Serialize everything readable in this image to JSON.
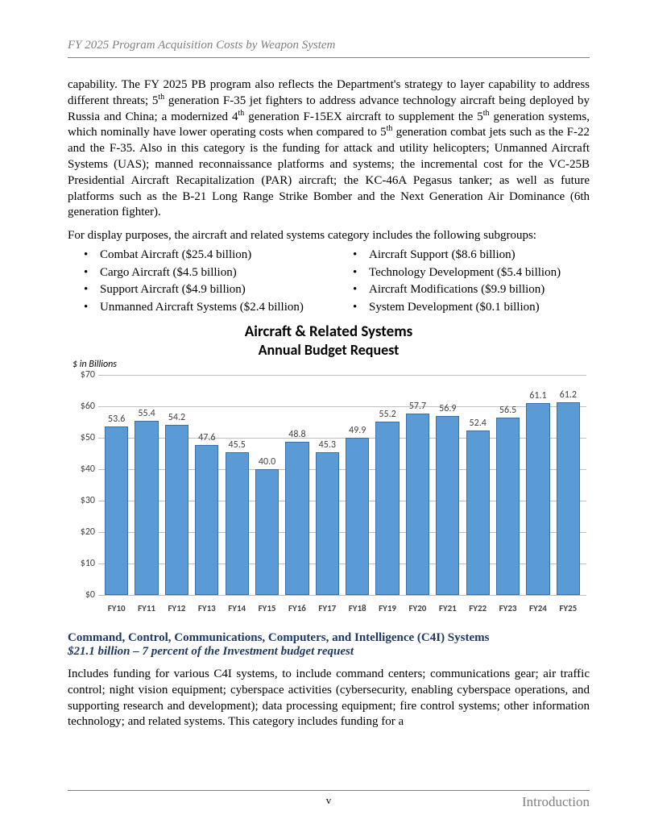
{
  "header": {
    "title": "FY 2025 Program Acquisition Costs by Weapon System"
  },
  "para1": "capability.  The FY 2025 PB program also reflects the Department's strategy to layer capability to address different threats; 5th generation F-35 jet fighters to address advance technology aircraft being deployed by Russia and China; a modernized 4th generation F-15EX aircraft to supplement the 5th generation systems, which nominally have lower operating costs when compared to 5th generation combat jets such as the F-22 and the F-35.  Also in this category is the funding for attack and utility helicopters; Unmanned Aircraft Systems (UAS); manned reconnaissance platforms and systems; the incremental cost for the VC-25B Presidential Aircraft Recapitalization (PAR) aircraft; the KC-46A Pegasus tanker; as well as future platforms such as the B-21 Long Range Strike Bomber and the Next Generation Air Dominance (6th generation fighter).",
  "para1_html": "capability.  The FY 2025 PB program also reflects the Department's strategy to layer capability to address different threats; 5<sup>th</sup> generation F-35 jet fighters to address advance technology aircraft being deployed by Russia and China; a modernized 4<sup>th</sup> generation F-15EX aircraft to supplement the 5<sup>th</sup> generation systems, which nominally have lower operating costs when compared to 5<sup>th</sup> generation combat jets such as the F-22 and the F-35.  Also in this category is the funding for attack and utility helicopters; Unmanned Aircraft Systems (UAS); manned reconnaissance platforms and systems; the incremental cost for the VC-25B Presidential Aircraft Recapitalization (PAR) aircraft; the KC-46A Pegasus tanker; as well as future platforms such as the B-21 Long Range Strike Bomber and the Next Generation Air Dominance (6th generation fighter).",
  "intro2": "For display purposes, the aircraft and related systems category includes the following subgroups:",
  "bullets_left": [
    "Combat Aircraft ($25.4 billion)",
    "Cargo Aircraft ($4.5 billion)",
    "Support Aircraft ($4.9 billion)",
    "Unmanned Aircraft Systems ($2.4 billion)"
  ],
  "bullets_right": [
    "Aircraft Support ($8.6 billion)",
    "Technology Development ($5.4 billion)",
    "Aircraft Modifications ($9.9 billion)",
    "System Development ($0.1 billion)"
  ],
  "chart": {
    "type": "bar",
    "title": "Aircraft & Related Systems",
    "subtitle": "Annual Budget Request",
    "ylabel": "$ in Billions",
    "categories": [
      "FY10",
      "FY11",
      "FY12",
      "FY13",
      "FY14",
      "FY15",
      "FY16",
      "FY17",
      "FY18",
      "FY19",
      "FY20",
      "FY21",
      "FY22",
      "FY23",
      "FY24",
      "FY25"
    ],
    "values": [
      53.6,
      55.4,
      54.2,
      47.6,
      45.5,
      40.0,
      48.8,
      45.3,
      49.9,
      55.2,
      57.7,
      56.9,
      52.4,
      56.5,
      61.1,
      61.2
    ],
    "value_labels": [
      "53.6",
      "55.4",
      "54.2",
      "47.6",
      "45.5",
      "40.0",
      "48.8",
      "45.3",
      "49.9",
      "55.2",
      "57.7",
      "56.9",
      "52.4",
      "56.5",
      "61.1",
      "61.2"
    ],
    "bar_fill": "#5b9bd5",
    "bar_border": "#3a6fa8",
    "grid_color": "#bfbfbf",
    "background": "#ffffff",
    "ylim": [
      0,
      70
    ],
    "ytick_step": 10,
    "yticks": [
      "$0",
      "$10",
      "$20",
      "$30",
      "$40",
      "$50",
      "$60",
      "$70"
    ],
    "label_font": "Calibri",
    "label_fontsize": 12,
    "title_fontsize": 19
  },
  "section": {
    "heading": "Command, Control, Communications, Computers, and Intelligence (C4I) Systems",
    "subheading": "$21.1 billion – 7 percent of the Investment budget request",
    "body": "Includes funding for various C4I systems, to include command centers; communications gear; air traffic control; night vision equipment; cyberspace activities (cybersecurity, enabling cyberspace operations, and supporting research and development); data processing equipment; fire control systems; other information technology; and related systems.  This category includes funding for a"
  },
  "footer": {
    "page": "v",
    "section": "Introduction"
  }
}
